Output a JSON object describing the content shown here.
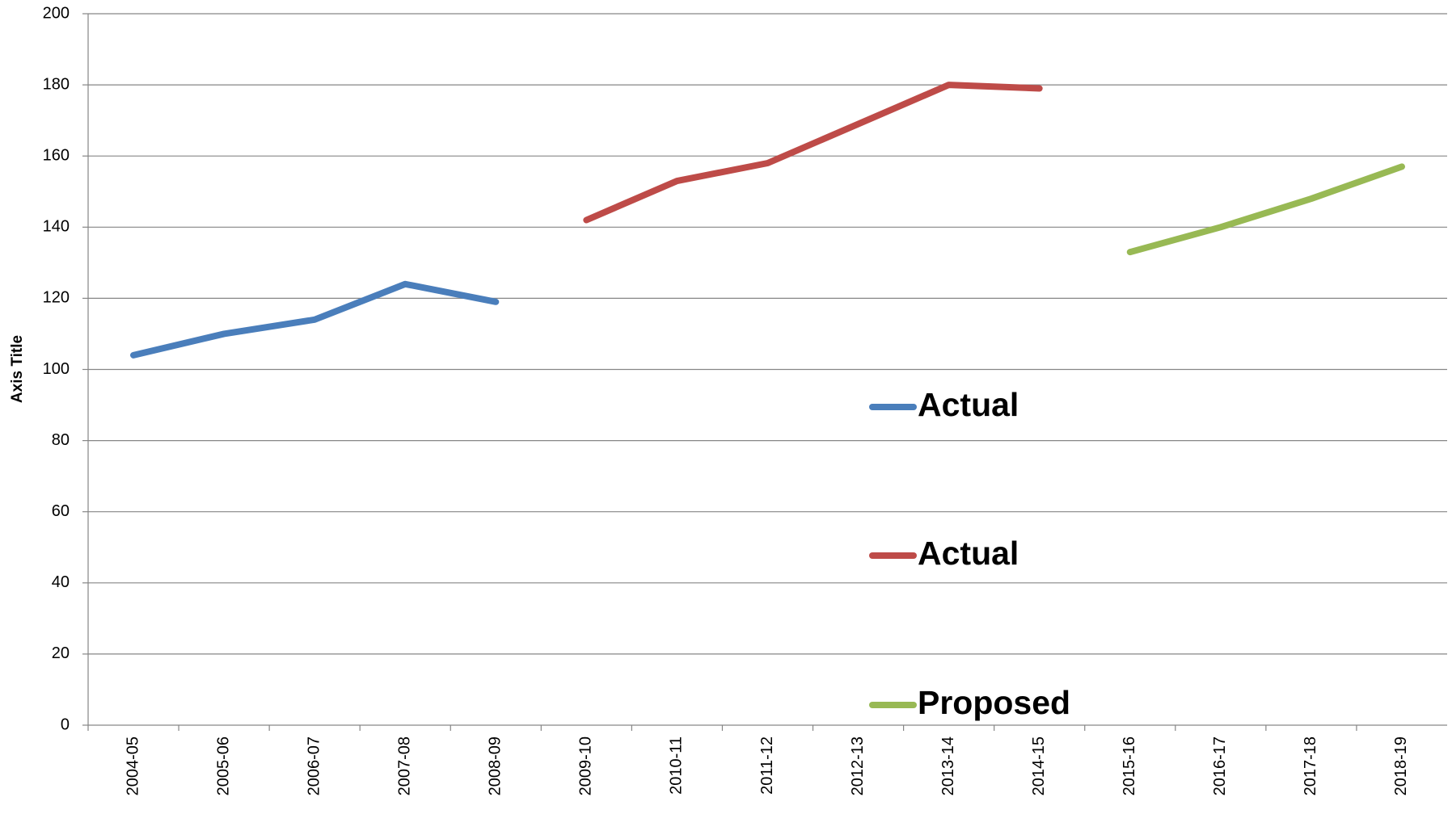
{
  "chart_data": {
    "type": "line",
    "y_axis_label": "Axis Title",
    "categories": [
      "2004-05",
      "2005-06",
      "2006-07",
      "2007-08",
      "2008-09",
      "2009-10",
      "2010-11",
      "2011-12",
      "2012-13",
      "2013-14",
      "2014-15",
      "2015-16",
      "2016-17",
      "2017-18",
      "2018-19"
    ],
    "series": [
      {
        "name": "Actual",
        "color": "#4a7ebb",
        "values": [
          104,
          110,
          114,
          124,
          119,
          null,
          null,
          null,
          null,
          null,
          null,
          null,
          null,
          null,
          null
        ]
      },
      {
        "name": "Actual",
        "color": "#be4b48",
        "values": [
          null,
          null,
          null,
          null,
          null,
          142,
          153,
          158,
          169,
          180,
          179,
          null,
          null,
          null,
          null
        ]
      },
      {
        "name": "Proposed",
        "color": "#98b954",
        "values": [
          null,
          null,
          null,
          null,
          null,
          null,
          null,
          null,
          null,
          null,
          null,
          133,
          140,
          148,
          157
        ]
      }
    ],
    "ylim": [
      0,
      200
    ],
    "yticks": [
      0,
      20,
      40,
      60,
      80,
      100,
      120,
      140,
      160,
      180,
      200
    ],
    "grid": true,
    "legend": "inside-center"
  }
}
